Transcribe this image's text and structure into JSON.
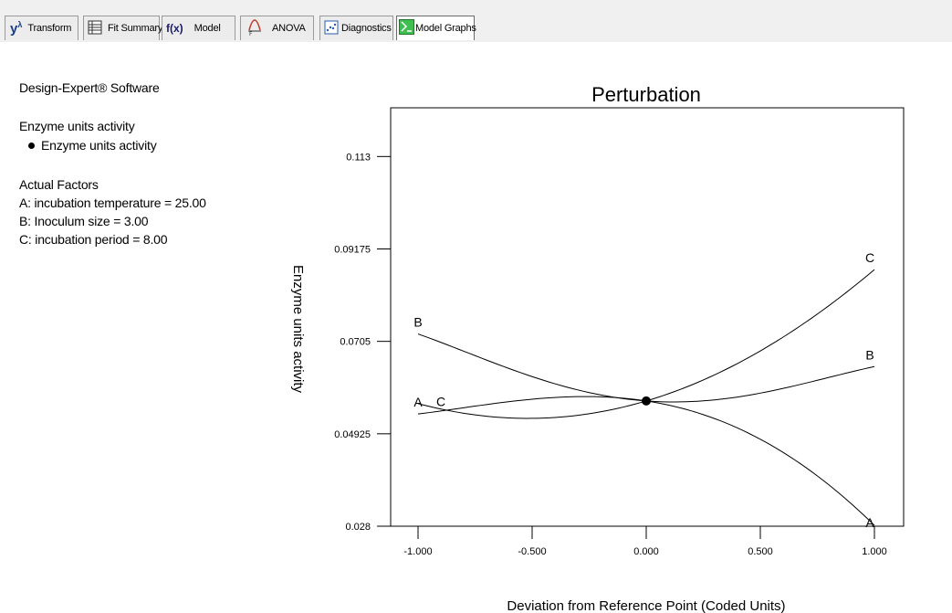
{
  "toolbar": {
    "tabs": [
      {
        "label": "Transform",
        "icon": "y-lambda-icon"
      },
      {
        "label": "Fit Summary",
        "icon": "fit-summary-icon"
      },
      {
        "label": "Model",
        "icon": "fx-icon"
      },
      {
        "label": "ANOVA",
        "icon": "anova-icon"
      },
      {
        "label": "Diagnostics",
        "icon": "diagnostics-icon"
      },
      {
        "label": "Model Graphs",
        "icon": "model-graphs-icon",
        "active": true
      }
    ],
    "tab_icon_text": {
      "transform": "y",
      "transform_sup": "λ",
      "model": "f(x)"
    }
  },
  "info": {
    "software": "Design-Expert® Software",
    "response_title": "Enzyme units activity",
    "response_legend": "Enzyme units activity",
    "factors_title": "Actual Factors",
    "factors": [
      "A: incubation temperature = 25.00",
      "B: Inoculum size = 3.00",
      "C: incubation period = 8.00"
    ]
  },
  "chart_data": {
    "type": "line",
    "title": "Perturbation",
    "xlabel": "Deviation from Reference Point (Coded Units)",
    "ylabel": "Enzyme units activity",
    "xlim": [
      -1.0,
      1.0
    ],
    "ylim": [
      0.028,
      0.1242
    ],
    "xticks": [
      "-1.000",
      "-0.500",
      "0.000",
      "0.500",
      "1.000"
    ],
    "xtick_values": [
      -1.0,
      -0.5,
      0.0,
      0.5,
      1.0
    ],
    "yticks": [
      "0.028",
      "0.04925",
      "0.0705",
      "0.09175",
      "0.113"
    ],
    "ytick_values": [
      0.028,
      0.04925,
      0.0705,
      0.09175,
      0.113
    ],
    "reference_point": {
      "x": 0.0,
      "y": 0.0568
    },
    "series": [
      {
        "name": "A",
        "x": [
          -1.0,
          -0.5,
          0.0,
          0.5,
          1.0
        ],
        "y": [
          0.0538,
          0.0572,
          0.0568,
          0.048,
          0.0282
        ]
      },
      {
        "name": "B",
        "x": [
          -1.0,
          -0.5,
          0.0,
          0.5,
          1.0
        ],
        "y": [
          0.0722,
          0.0624,
          0.0568,
          0.0586,
          0.0647
        ]
      },
      {
        "name": "C",
        "x": [
          -1.0,
          -0.5,
          0.0,
          0.5,
          1.0
        ],
        "y": [
          0.0562,
          0.0528,
          0.0568,
          0.0683,
          0.087
        ]
      }
    ],
    "colors": {
      "line": "#000000",
      "frame": "#000000"
    }
  }
}
